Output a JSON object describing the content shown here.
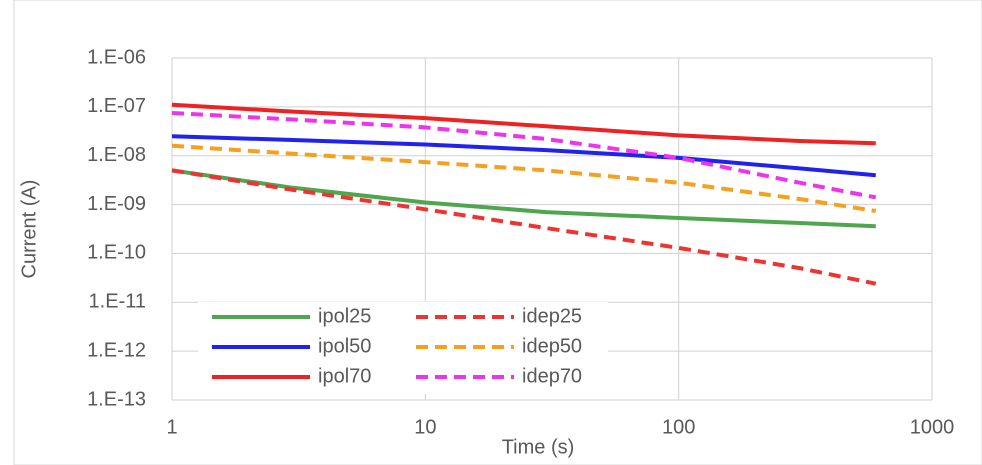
{
  "chart_data": {
    "type": "line",
    "x_label": "Time (s)",
    "y_label": "Current (A)",
    "x": [
      1,
      3,
      10,
      30,
      100,
      300,
      600
    ],
    "series": [
      {
        "name": "ipol25",
        "color": "#4ea64e",
        "dash": false,
        "values": [
          5e-09,
          2.2e-09,
          1.1e-09,
          7e-10,
          5.3e-10,
          4.2e-10,
          3.6e-10
        ]
      },
      {
        "name": "idep25",
        "color": "#ee3333",
        "dash": true,
        "values": [
          5e-09,
          2e-09,
          8e-10,
          3.3e-10,
          1.3e-10,
          5e-11,
          2.4e-11
        ]
      },
      {
        "name": "ipol50",
        "color": "#2222ee",
        "dash": false,
        "values": [
          2.5e-08,
          2.1e-08,
          1.7e-08,
          1.3e-08,
          9e-09,
          5.5e-09,
          4e-09
        ]
      },
      {
        "name": "idep50",
        "color": "#f5a020",
        "dash": true,
        "values": [
          1.6e-08,
          1.1e-08,
          7.4e-09,
          5e-09,
          2.8e-09,
          1.3e-09,
          7.4e-10
        ]
      },
      {
        "name": "ipol70",
        "color": "#ee2222",
        "dash": false,
        "values": [
          1.1e-07,
          8e-08,
          5.9e-08,
          4e-08,
          2.6e-08,
          2e-08,
          1.8e-08
        ]
      },
      {
        "name": "idep70",
        "color": "#ee33ee",
        "dash": true,
        "values": [
          7.5e-08,
          5.5e-08,
          3.8e-08,
          2.2e-08,
          9e-09,
          2.8e-09,
          1.4e-09
        ]
      }
    ],
    "xlog": true,
    "ylog": true,
    "xlim": [
      1,
      1000
    ],
    "ylim": [
      1e-13,
      1e-06
    ],
    "xticks": [
      1,
      10,
      100,
      1000
    ],
    "yticks": [
      {
        "value": 1e-13,
        "label": "1.E-13"
      },
      {
        "value": 1e-12,
        "label": "1.E-12"
      },
      {
        "value": 1e-11,
        "label": "1.E-11"
      },
      {
        "value": 1e-10,
        "label": "1.E-10"
      },
      {
        "value": 1e-09,
        "label": "1.E-09"
      },
      {
        "value": 1e-08,
        "label": "1.E-08"
      },
      {
        "value": 1e-07,
        "label": "1.E-07"
      },
      {
        "value": 1e-06,
        "label": "1.E-06"
      }
    ],
    "grid": true
  }
}
